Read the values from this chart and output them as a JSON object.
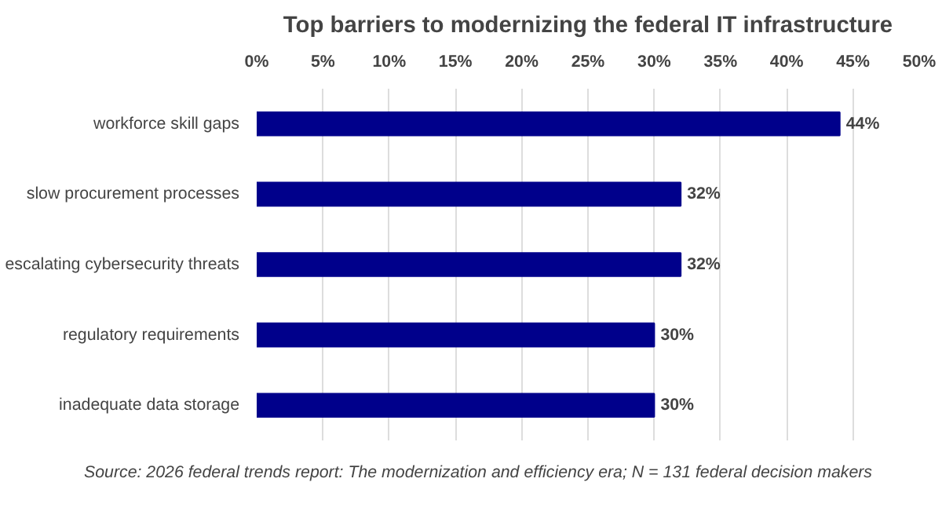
{
  "chart_data": {
    "type": "bar",
    "orientation": "horizontal",
    "title": "Top barriers to modernizing the federal IT infrastructure",
    "categories": [
      "workforce skill gaps",
      "slow procurement processes",
      "escalating cybersecurity threats",
      "regulatory requirements",
      "inadequate data storage"
    ],
    "values": [
      44,
      32,
      32,
      30,
      30
    ],
    "color": "#00008b",
    "value_labels": [
      "44%",
      "32%",
      "32%",
      "30%",
      "30%"
    ],
    "xlim": [
      0,
      50
    ],
    "xticks": [
      {
        "value": 0,
        "label": "0%"
      },
      {
        "value": 5,
        "label": "5%"
      },
      {
        "value": 10,
        "label": "10%"
      },
      {
        "value": 15,
        "label": "15%"
      },
      {
        "value": 20,
        "label": "20%"
      },
      {
        "value": 25,
        "label": "25%"
      },
      {
        "value": 30,
        "label": "30%"
      },
      {
        "value": 35,
        "label": "35%"
      },
      {
        "value": 40,
        "label": "40%"
      },
      {
        "value": 45,
        "label": "45%"
      },
      {
        "value": 50,
        "label": "50%"
      }
    ],
    "grid": "x",
    "annotations": [
      "Source: 2026 federal trends report: The modernization and efficiency era; N = 131 federal decision makers"
    ]
  }
}
